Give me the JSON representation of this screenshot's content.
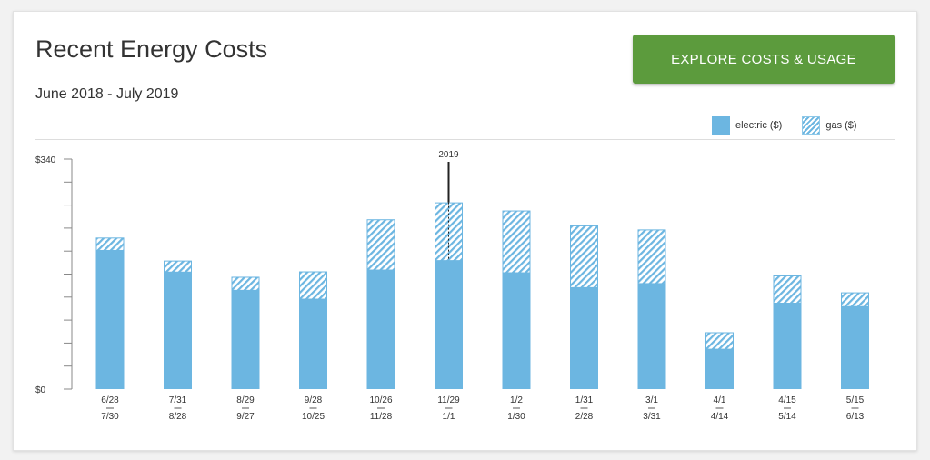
{
  "header": {
    "title": "Recent Energy Costs",
    "subtitle": "June 2018 - July 2019",
    "cta_label": "EXPLORE COSTS & USAGE"
  },
  "legend": {
    "electric": "electric ($)",
    "gas": "gas ($)"
  },
  "colors": {
    "electric": "#6cb6e1",
    "gas_stripe": "#6cb6e1",
    "cta": "#5c9b3d",
    "axis": "#888888"
  },
  "chart_data": {
    "type": "bar",
    "stacked": true,
    "ylim": [
      0,
      340
    ],
    "y_tick_labels": [
      "$340",
      "$0"
    ],
    "grid": false,
    "legend_position": "top-right",
    "categories": [
      {
        "start": "6/28",
        "end": "7/30"
      },
      {
        "start": "7/31",
        "end": "8/28"
      },
      {
        "start": "8/29",
        "end": "9/27"
      },
      {
        "start": "9/28",
        "end": "10/25"
      },
      {
        "start": "10/26",
        "end": "11/28"
      },
      {
        "start": "11/29",
        "end": "1/1"
      },
      {
        "start": "1/2",
        "end": "1/30"
      },
      {
        "start": "1/31",
        "end": "2/28"
      },
      {
        "start": "3/1",
        "end": "3/31"
      },
      {
        "start": "4/1",
        "end": "4/14"
      },
      {
        "start": "4/15",
        "end": "5/14"
      },
      {
        "start": "5/15",
        "end": "6/13"
      }
    ],
    "series": [
      {
        "name": "electric ($)",
        "values": [
          205,
          173,
          146,
          133,
          176,
          190,
          172,
          150,
          156,
          59,
          127,
          122
        ]
      },
      {
        "name": "gas ($)",
        "values": [
          19,
          17,
          20,
          41,
          75,
          86,
          92,
          92,
          80,
          25,
          41,
          21
        ]
      }
    ],
    "annotations": [
      {
        "label": "2019",
        "between_category_index": 5
      }
    ]
  }
}
